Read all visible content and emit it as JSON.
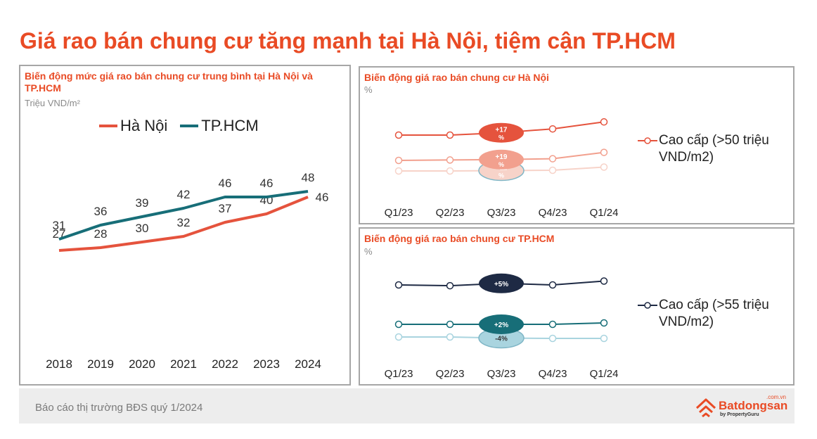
{
  "page_title": "Giá rao bán chung cư tăng mạnh tại Hà Nội, tiệm cận TP.HCM",
  "colors": {
    "accent": "#e94b25",
    "hanoi": "#e5533d",
    "hcm": "#176e78",
    "navy": "#1e2a44"
  },
  "chart_data": [
    {
      "type": "line",
      "title": "Biến động mức giá rao bán chung cư trung bình tại Hà Nội và TP.HCM",
      "unit": "Triệu VND/m²",
      "x": [
        "2018",
        "2019",
        "2020",
        "2021",
        "2022",
        "2023",
        "2024"
      ],
      "ylim": [
        20,
        50
      ],
      "legend": "top",
      "series": [
        {
          "name": "Hà Nội",
          "color": "#e5533d",
          "values": [
            27,
            28,
            30,
            32,
            37,
            40,
            46
          ]
        },
        {
          "name": "TP.HCM",
          "color": "#176e78",
          "values": [
            31,
            36,
            39,
            42,
            46,
            46,
            48
          ]
        }
      ]
    },
    {
      "type": "line",
      "title": "Biến động giá rao bán chung cư Hà Nội",
      "unit": "%",
      "x": [
        "Q1/23",
        "Q2/23",
        "Q3/23",
        "Q4/23",
        "Q1/24"
      ],
      "legend": "right",
      "legend_label": "Cao cấp (>50 triệu VND/m2)",
      "series": [
        {
          "color": "#e5533d",
          "values": [
            100,
            100,
            103,
            108,
            117
          ],
          "badge": "+17 %"
        },
        {
          "color": "#f2a08e",
          "values": [
            100,
            101,
            102,
            104,
            119
          ],
          "badge": "+19 %"
        },
        {
          "color": "#f7d3c9",
          "values": [
            100,
            100,
            101,
            102,
            111
          ],
          "badge": "+11 %"
        }
      ]
    },
    {
      "type": "line",
      "title": "Biến động giá rao bán chung cư TP.HCM",
      "unit": "%",
      "x": [
        "Q1/23",
        "Q2/23",
        "Q3/23",
        "Q4/23",
        "Q1/24"
      ],
      "legend": "right",
      "legend_label": "Cao cấp (>55 triệu VND/m2)",
      "series": [
        {
          "color": "#1e2a44",
          "values": [
            100,
            99,
            102,
            100,
            105
          ],
          "badge": "+5%"
        },
        {
          "color": "#176e78",
          "values": [
            100,
            100,
            100,
            100,
            102
          ],
          "badge": "+2%"
        },
        {
          "color": "#a9d4df",
          "values": [
            100,
            100,
            97,
            96,
            96
          ],
          "badge": "-4%"
        }
      ]
    }
  ],
  "footer": {
    "report": "Báo cáo thị trường BĐS quý 1/2024",
    "brand": "Batdongsan",
    "brand_domain": ".com.vn",
    "brand_sub": "by PropertyGuru"
  }
}
